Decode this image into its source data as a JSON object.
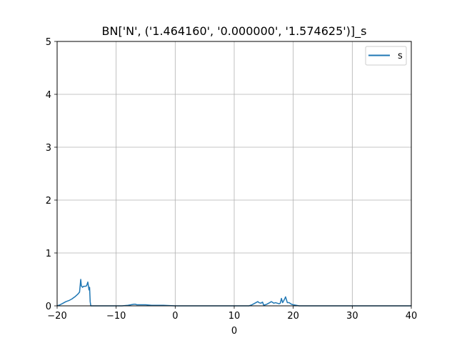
{
  "chart_data": {
    "type": "line",
    "title": "BN['N', ('1.464160', '0.000000', '1.574625')]_s",
    "xlabel": "0",
    "ylabel": "",
    "xlim": [
      -20,
      40
    ],
    "ylim": [
      0,
      5
    ],
    "xticks": [
      -20,
      -10,
      0,
      10,
      20,
      30,
      40
    ],
    "xtick_labels": [
      "−20",
      "−10",
      "0",
      "10",
      "20",
      "30",
      "40"
    ],
    "yticks": [
      0,
      1,
      2,
      3,
      4,
      5
    ],
    "ytick_labels": [
      "0",
      "1",
      "2",
      "3",
      "4",
      "5"
    ],
    "grid": true,
    "legend_position": "top-right",
    "series": [
      {
        "name": "s",
        "color": "#1f77b4",
        "x": [
          -20,
          -19.5,
          -19,
          -18.5,
          -18,
          -17.5,
          -17,
          -16.5,
          -16.2,
          -16,
          -15.9,
          -15.7,
          -15.5,
          -15.2,
          -15,
          -14.8,
          -14.6,
          -14.5,
          -14.4,
          -14.3,
          -10,
          -9,
          -8,
          -7.5,
          -7,
          -6.7,
          -6.5,
          -6,
          -5,
          -4,
          -3,
          -2,
          0,
          5,
          10,
          12.5,
          13,
          13.5,
          14,
          14.2,
          14.5,
          14.8,
          15,
          15.5,
          16,
          16.3,
          16.7,
          17,
          17.3,
          17.6,
          17.8,
          18,
          18.2,
          18.5,
          18.7,
          19,
          19.3,
          19.7,
          20,
          20.5,
          21,
          25,
          30,
          35,
          40
        ],
        "y": [
          0,
          0.02,
          0.05,
          0.08,
          0.1,
          0.13,
          0.17,
          0.22,
          0.26,
          0.5,
          0.38,
          0.35,
          0.37,
          0.37,
          0.38,
          0.45,
          0.3,
          0.35,
          0.08,
          0,
          0,
          0,
          0.01,
          0.02,
          0.03,
          0.03,
          0.02,
          0.02,
          0.02,
          0.01,
          0.01,
          0.01,
          0,
          0,
          0,
          0,
          0.02,
          0.05,
          0.08,
          0.06,
          0.05,
          0.07,
          0.01,
          0.03,
          0.06,
          0.08,
          0.05,
          0.06,
          0.05,
          0.04,
          0.05,
          0.14,
          0.06,
          0.12,
          0.17,
          0.06,
          0.06,
          0.03,
          0.02,
          0.01,
          0,
          0,
          0,
          0,
          0
        ]
      }
    ]
  }
}
